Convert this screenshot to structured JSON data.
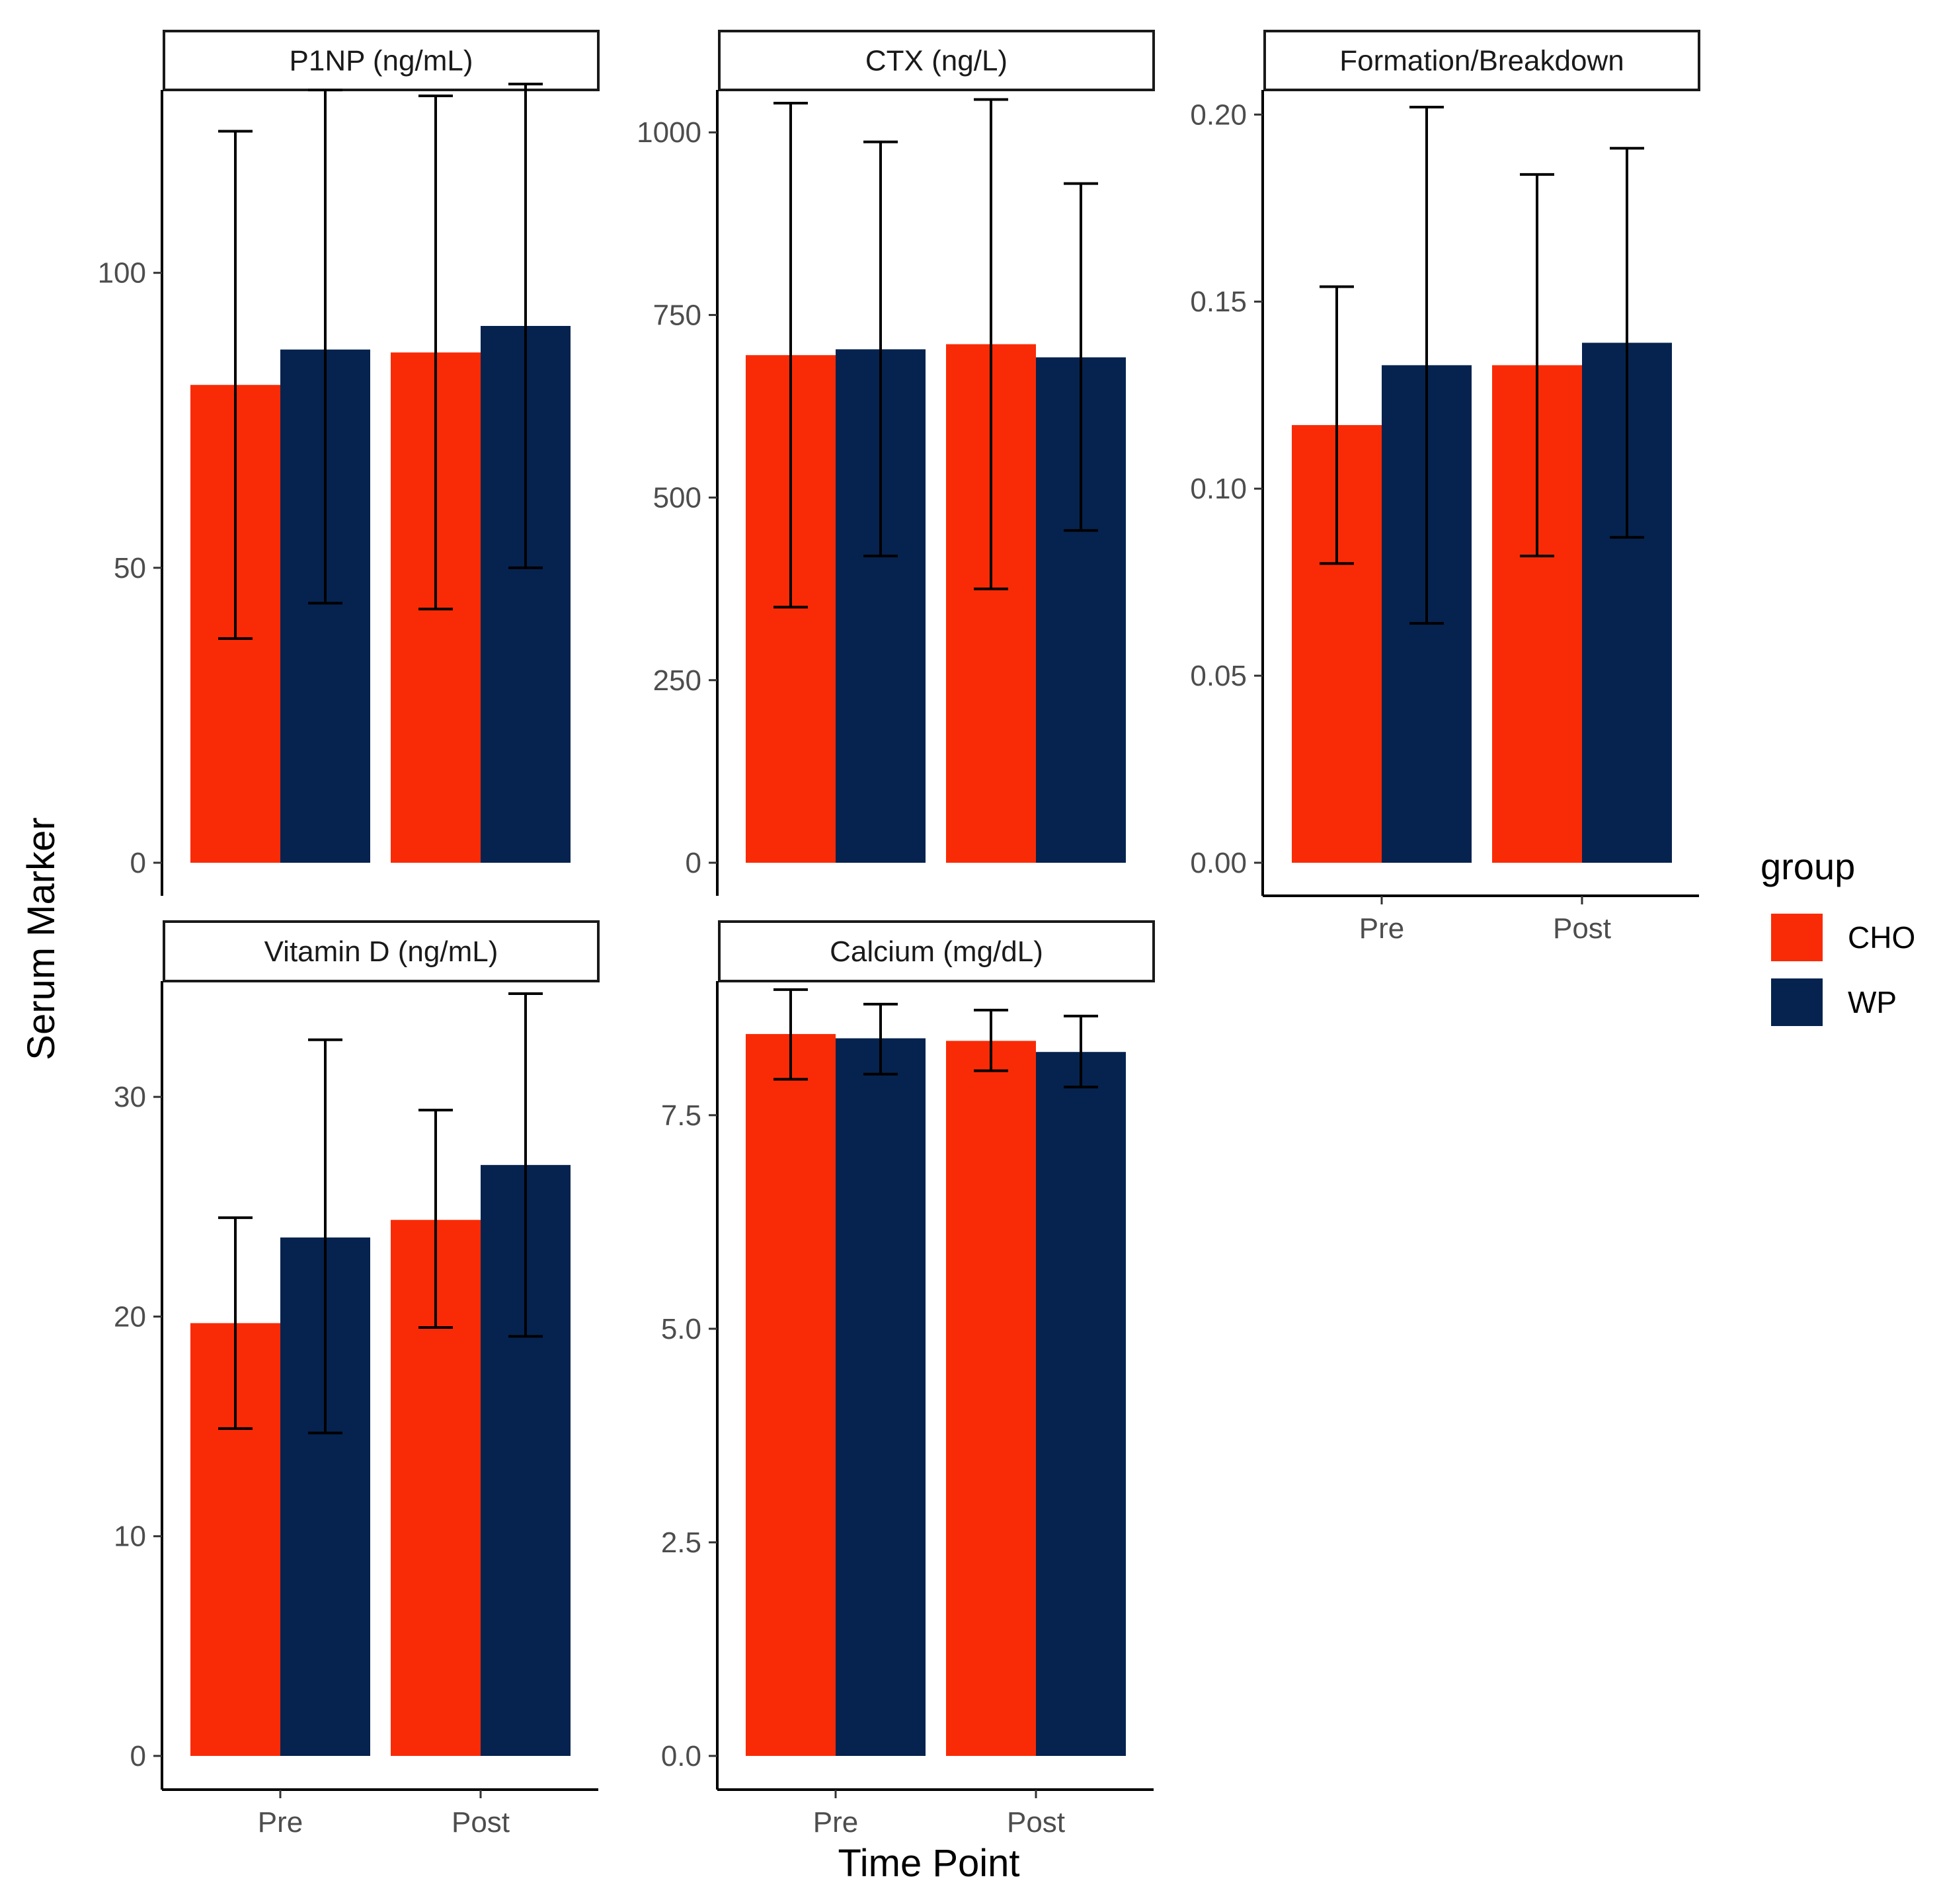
{
  "chart_data": {
    "type": "bar",
    "x_axis_title": "Time Point",
    "y_axis_title": "Serum Marker",
    "categories": [
      "Pre",
      "Post"
    ],
    "legend": {
      "title": "group",
      "entries": [
        {
          "name": "CHO",
          "color": "#F92B06"
        },
        {
          "name": "WP",
          "color": "#06234F"
        }
      ]
    },
    "panels": [
      {
        "title": "P1NP (ng/mL)",
        "ylim": [
          0,
          130
        ],
        "yticks": [
          0,
          50,
          100
        ],
        "series": [
          {
            "name": "CHO",
            "values": [
              81,
              86.5
            ],
            "err_low": [
              38,
              43
            ],
            "err_high": [
              124,
              130
            ]
          },
          {
            "name": "WP",
            "values": [
              87,
              91
            ],
            "err_low": [
              44,
              50
            ],
            "err_high": [
              131,
              132
            ]
          }
        ]
      },
      {
        "title": "CTX (ng/L)",
        "ylim": [
          0,
          1050
        ],
        "yticks": [
          0,
          250,
          500,
          750,
          1000
        ],
        "series": [
          {
            "name": "CHO",
            "values": [
              695,
              710
            ],
            "err_low": [
              350,
              375
            ],
            "err_high": [
              1040,
              1045
            ]
          },
          {
            "name": "WP",
            "values": [
              703,
              692
            ],
            "err_low": [
              420,
              455
            ],
            "err_high": [
              987,
              930
            ]
          }
        ]
      },
      {
        "title": "Formation/Breakdown",
        "ylim": [
          0,
          0.205
        ],
        "yticks": [
          0.0,
          0.05,
          0.1,
          0.15,
          0.2
        ],
        "ytick_labels": [
          "0.00",
          "0.05",
          "0.10",
          "0.15",
          "0.20"
        ],
        "series": [
          {
            "name": "CHO",
            "values": [
              0.117,
              0.133
            ],
            "err_low": [
              0.08,
              0.082
            ],
            "err_high": [
              0.154,
              0.184
            ]
          },
          {
            "name": "WP",
            "values": [
              0.133,
              0.139
            ],
            "err_low": [
              0.064,
              0.087
            ],
            "err_high": [
              0.202,
              0.191
            ]
          }
        ]
      },
      {
        "title": "Vitamin D (ng/mL)",
        "ylim": [
          0,
          35
        ],
        "yticks": [
          0,
          10,
          20,
          30
        ],
        "series": [
          {
            "name": "CHO",
            "values": [
              19.7,
              24.4
            ],
            "err_low": [
              14.9,
              19.5
            ],
            "err_high": [
              24.5,
              29.4
            ]
          },
          {
            "name": "WP",
            "values": [
              23.6,
              26.9
            ],
            "err_low": [
              14.7,
              19.1
            ],
            "err_high": [
              32.6,
              34.7
            ]
          }
        ]
      },
      {
        "title": "Calcium (mg/dL)",
        "ylim": [
          0,
          9
        ],
        "yticks": [
          0.0,
          2.5,
          5.0,
          7.5
        ],
        "ytick_labels": [
          "0.0",
          "2.5",
          "5.0",
          "7.5"
        ],
        "series": [
          {
            "name": "CHO",
            "values": [
              8.45,
              8.37
            ],
            "err_low": [
              7.92,
              8.02
            ],
            "err_high": [
              8.97,
              8.73
            ]
          },
          {
            "name": "WP",
            "values": [
              8.4,
              8.24
            ],
            "err_low": [
              7.98,
              7.83
            ],
            "err_high": [
              8.8,
              8.66
            ]
          }
        ]
      }
    ]
  }
}
